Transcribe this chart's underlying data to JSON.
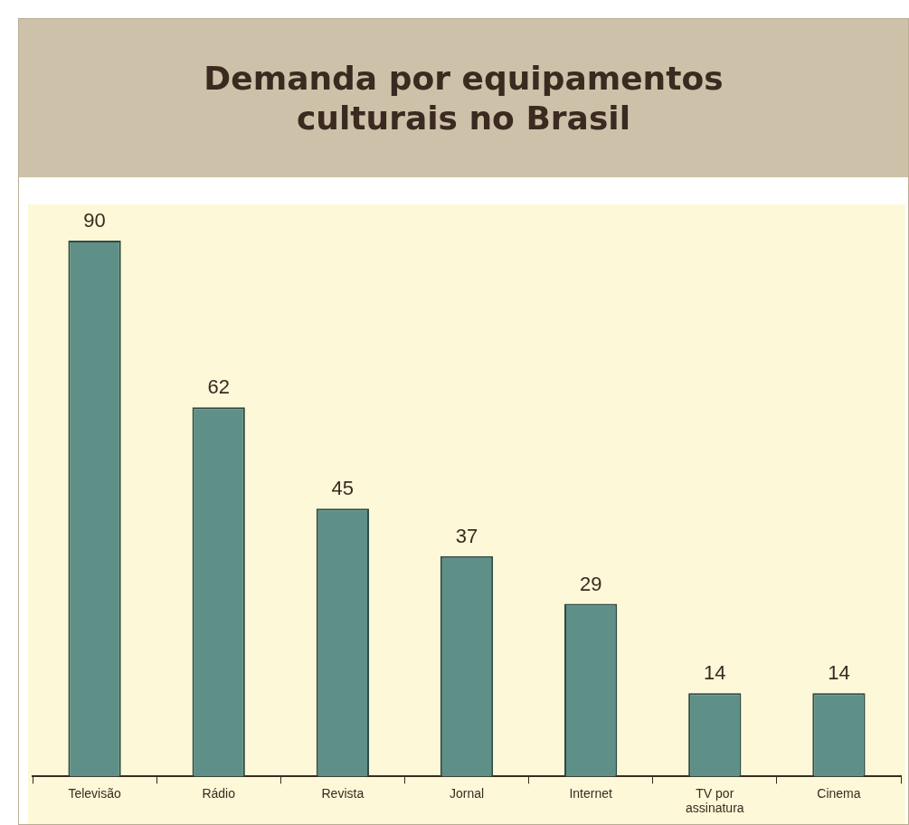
{
  "chart_data": {
    "type": "bar",
    "title": "Demanda por equipamentos culturais no Brasil",
    "categories": [
      "Televisão",
      "Rádio",
      "Revista",
      "Jornal",
      "Internet",
      "TV por assinatura",
      "Cinema"
    ],
    "values": [
      90,
      62,
      45,
      37,
      29,
      14,
      14
    ],
    "color": "#5e9088",
    "data_labels": true,
    "grid": false,
    "legend": false
  }
}
